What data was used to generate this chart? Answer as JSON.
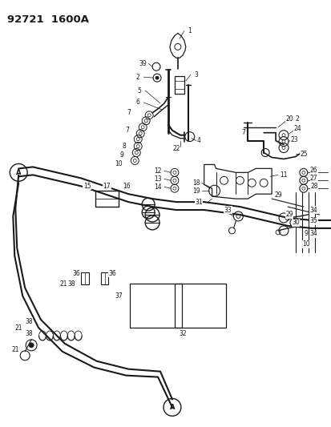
{
  "title": "92721  1600A",
  "bg_color": "#ffffff",
  "line_color": "#1a1a1a",
  "fig_width": 4.14,
  "fig_height": 5.33,
  "dpi": 100
}
